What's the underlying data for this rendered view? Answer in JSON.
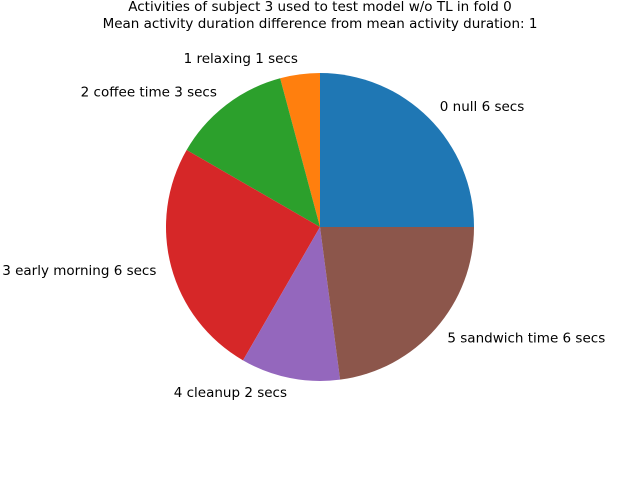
{
  "chart_data": {
    "type": "pie",
    "title": "Activities of subject 3 used to test model w/o TL in fold 0",
    "subtitle": "Mean activity duration difference from mean activity duration: 1",
    "start_angle_deg": 0,
    "direction": "counterclockwise",
    "slices": [
      {
        "label": "0 null 6 secs",
        "value": 6,
        "color": "#1f77b4"
      },
      {
        "label": "1 relaxing 1 secs",
        "value": 1,
        "color": "#ff7f0e"
      },
      {
        "label": "2 coffee time 3 secs",
        "value": 3,
        "color": "#2ca02c"
      },
      {
        "label": "3 early morning 6 secs",
        "value": 6,
        "color": "#d62728"
      },
      {
        "label": "4 cleanup 2 secs",
        "value": 2.5,
        "color": "#9467bd"
      },
      {
        "label": "5 sandwich time 6 secs",
        "value": 5.5,
        "color": "#8c564b"
      }
    ]
  }
}
